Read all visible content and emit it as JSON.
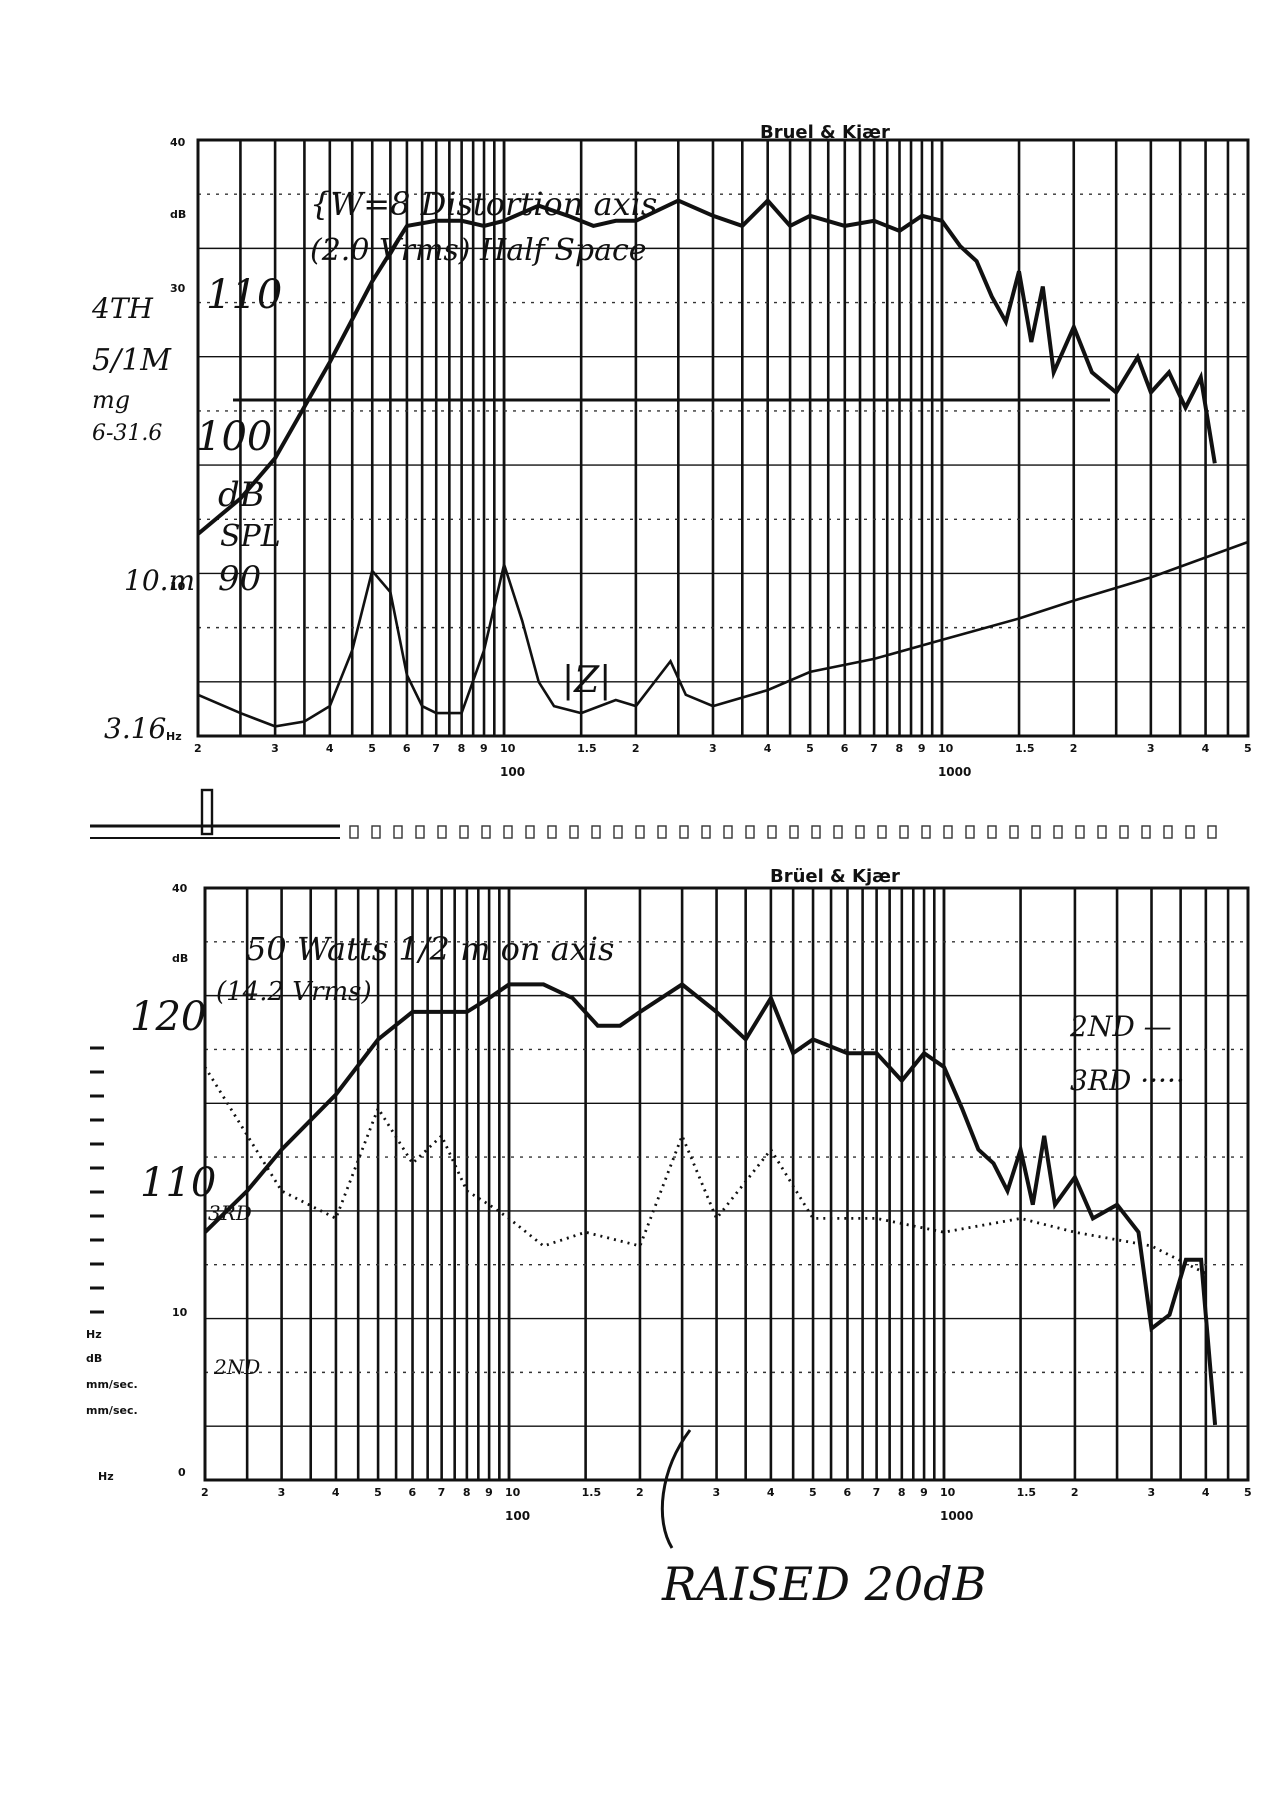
{
  "colors": {
    "ink": "#111111",
    "paper": "#ffffff"
  },
  "chart_data": [
    {
      "type": "line",
      "brand": "Bruel & Kjær",
      "scale": "log",
      "x_tick_labels": [
        "2",
        "3",
        "4",
        "5",
        "6",
        "7",
        "8",
        "9",
        "10",
        "100",
        "1.5",
        "2",
        "3",
        "4",
        "5",
        "6",
        "7",
        "8",
        "9",
        "10",
        "1000",
        "1.5",
        "2",
        "3",
        "4",
        "5"
      ],
      "x_major_labels": [
        "100",
        "1000"
      ],
      "y_tick_labels": [
        "40",
        "dB",
        "30",
        "10",
        "Hz"
      ],
      "handwritten": {
        "header": "{W=8 Distortion axis",
        "header2": "(2.0 Vrms) Half Space",
        "left_l1": "4TH",
        "left_l2": "5/1M",
        "left_l3": "mg",
        "left_l4": "6-31.6",
        "left_l5": "10.m",
        "left_l6": "3.16",
        "y110": "110",
        "y100": "100",
        "dB": "dB",
        "spl": "SPL",
        "y90": "90",
        "z_label": "|Z|"
      },
      "series": [
        {
          "x": [
            20,
            25,
            30,
            40,
            50,
            60,
            70,
            80,
            90,
            100,
            120,
            140,
            160,
            180,
            200,
            250,
            300,
            350,
            400,
            450,
            500,
            600,
            700,
            800,
            900,
            1000,
            1100,
            1200,
            1300,
            1400,
            1500,
            1600,
            1700,
            1800,
            2000,
            2200,
            2500,
            2800,
            3000,
            3300,
            3600,
            3900,
            4200
          ],
          "y": [
            38,
            45,
            53,
            72,
            88,
            99,
            100,
            100,
            99,
            100,
            103,
            101,
            99,
            100,
            100,
            104,
            101,
            99,
            104,
            99,
            101,
            99,
            100,
            98,
            101,
            100,
            95,
            92,
            85,
            80,
            90,
            76,
            87,
            70,
            79,
            70,
            66,
            73,
            66,
            70,
            63,
            69,
            52
          ]
        },
        {
          "x": [
            20,
            25,
            30,
            35,
            40,
            45,
            50,
            55,
            60,
            65,
            70,
            80,
            90,
            100,
            110,
            120,
            130,
            150,
            180,
            200,
            240,
            260,
            300,
            400,
            500,
            700,
            1000,
            1500,
            2000,
            3000,
            5000
          ],
          "y": [
            0.5,
            0.2,
            0.05,
            0.1,
            0.3,
            2,
            10,
            7,
            1,
            0.3,
            0.2,
            0.2,
            2,
            11,
            4,
            0.8,
            0.3,
            0.2,
            0.4,
            0.3,
            1.5,
            0.5,
            0.3,
            0.6,
            1.1,
            1.6,
            2.6,
            4.2,
            6,
            9,
            15
          ]
        }
      ]
    },
    {
      "type": "line",
      "brand": "Brüel & Kjær",
      "scale": "log",
      "x_tick_labels": [
        "2",
        "3",
        "4",
        "5",
        "6",
        "7",
        "8",
        "9",
        "10",
        "100",
        "1.5",
        "2",
        "3",
        "4",
        "5",
        "6",
        "7",
        "8",
        "9",
        "10",
        "1000",
        "1.5",
        "2",
        "3",
        "4",
        "5"
      ],
      "x_major_labels": [
        "100",
        "1000"
      ],
      "y_tick_labels": [
        "40",
        "dB",
        "10",
        "Hz",
        "dB",
        "mm/sec.",
        "mm/sec.",
        "0",
        "Hz"
      ],
      "handwritten": {
        "header": "50 Watts 1/2 m on axis",
        "header2": "(14.2 Vrms)",
        "y120": "120",
        "y110": "110",
        "third": "3RD",
        "second": "2ND",
        "second_legend": "2ND —",
        "third_legend": "3RD ·····",
        "annotation": "RAISED 20dB"
      },
      "series": [
        {
          "name": "2ND",
          "x": [
            20,
            25,
            30,
            40,
            50,
            60,
            70,
            80,
            90,
            100,
            120,
            140,
            160,
            180,
            200,
            250,
            300,
            350,
            400,
            450,
            500,
            600,
            700,
            800,
            900,
            1000,
            1100,
            1200,
            1300,
            1400,
            1500,
            1600,
            1700,
            1800,
            2000,
            2200,
            2500,
            2800,
            3000,
            3300,
            3600,
            3900,
            4200
          ],
          "y": [
            103,
            106,
            109,
            113,
            117,
            119,
            119,
            119,
            120,
            121,
            121,
            120,
            118,
            118,
            119,
            121,
            119,
            117,
            120,
            116,
            117,
            116,
            116,
            114,
            116,
            115,
            112,
            109,
            108,
            106,
            109,
            105,
            110,
            105,
            107,
            104,
            105,
            103,
            96,
            97,
            101,
            101,
            89
          ]
        },
        {
          "name": "3RD",
          "x": [
            20,
            30,
            40,
            50,
            60,
            70,
            80,
            90,
            100,
            120,
            150,
            200,
            250,
            300,
            400,
            500,
            700,
            1000,
            1500,
            2000,
            3000,
            4000
          ],
          "y": [
            115,
            106,
            104,
            112,
            108,
            110,
            106,
            105,
            104,
            102,
            103,
            102,
            110,
            104,
            109,
            104,
            104,
            103,
            104,
            103,
            102,
            100
          ]
        }
      ]
    }
  ]
}
